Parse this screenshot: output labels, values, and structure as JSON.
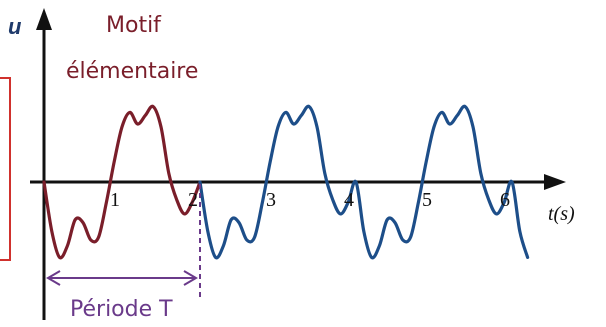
{
  "chart_data": {
    "type": "line",
    "title": "",
    "ylabel": "u",
    "xlabel": "t(s)",
    "x_ticks": [
      1,
      2,
      3,
      4,
      5,
      6
    ],
    "x_range": [
      0,
      6.5
    ],
    "y_range": [
      -1.6,
      1.9
    ],
    "grid": false,
    "annotations": {
      "motif_line1": "Motif",
      "motif_line2": "élémentaire",
      "period": "Période T"
    },
    "period_T": 2,
    "series": [
      {
        "color": "#7a1e2a",
        "t": [
          0,
          0.1,
          0.2,
          0.3,
          0.4,
          0.5,
          0.6,
          0.7,
          0.8,
          0.9,
          1.0,
          1.1,
          1.2,
          1.3,
          1.4,
          1.5,
          1.6,
          1.7,
          1.8,
          1.9,
          2.0
        ],
        "u": [
          0,
          -0.85,
          -1.3,
          -1.1,
          -0.65,
          -0.7,
          -1.0,
          -0.95,
          -0.35,
          0.35,
          0.95,
          1.2,
          1.0,
          1.15,
          1.3,
          0.95,
          0.15,
          -0.3,
          -0.55,
          -0.35,
          0.0
        ]
      },
      {
        "color": "#1d4e89",
        "t": [
          2.0,
          2.1,
          2.2,
          2.3,
          2.4,
          2.5,
          2.6,
          2.7,
          2.8,
          2.9,
          3.0,
          3.1,
          3.2,
          3.3,
          3.4,
          3.5,
          3.6,
          3.7,
          3.8,
          3.9,
          4.0,
          4.1,
          4.2,
          4.3,
          4.4,
          4.5,
          4.6,
          4.7,
          4.8,
          4.9,
          5.0,
          5.1,
          5.2,
          5.3,
          5.4,
          5.5,
          5.6,
          5.7,
          5.8,
          5.9,
          6.0,
          6.1,
          6.2
        ],
        "u": [
          0.0,
          -0.85,
          -1.3,
          -1.1,
          -0.65,
          -0.7,
          -1.0,
          -0.95,
          -0.35,
          0.35,
          0.95,
          1.2,
          1.0,
          1.15,
          1.3,
          0.95,
          0.15,
          -0.3,
          -0.55,
          -0.35,
          0.0,
          -0.85,
          -1.3,
          -1.1,
          -0.65,
          -0.7,
          -1.0,
          -0.95,
          -0.35,
          0.35,
          0.95,
          1.2,
          1.0,
          1.15,
          1.3,
          0.95,
          0.15,
          -0.3,
          -0.55,
          -0.35,
          0.0,
          -0.85,
          -1.3
        ]
      }
    ]
  },
  "colors": {
    "motif": "#7a1e2a",
    "wave": "#1d4e89",
    "axis": "#111111",
    "period_arrow": "#6a3a8a",
    "frame": "#d0312d"
  }
}
